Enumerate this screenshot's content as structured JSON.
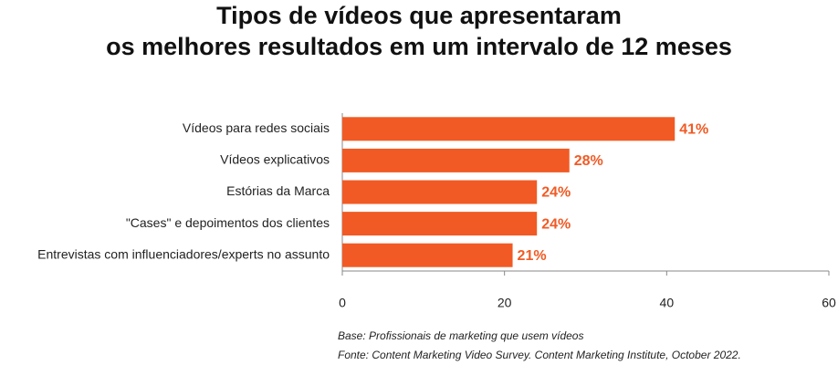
{
  "chart_data": {
    "type": "hbar",
    "title": [
      "Tipos de vídeos que apresentaram",
      "os melhores resultados em um intervalo de 12 meses"
    ],
    "categories": [
      "Vídeos para redes sociais",
      "Vídeos explicativos",
      "Estórias da Marca",
      "\"Cases\" e depoimentos dos clientes",
      "Entrevistas com influenciadores/experts no assunto"
    ],
    "values": [
      41,
      28,
      24,
      24,
      21
    ],
    "value_labels": [
      "41%",
      "28%",
      "24%",
      "24%",
      "21%"
    ],
    "color": "#f15a24",
    "xlim": [
      0,
      60
    ],
    "xticks": [
      0,
      20,
      40,
      60
    ],
    "notes": [
      "Base: Profissionais de marketing que usem vídeos",
      "Fonte: Content Marketing Video Survey. Content Marketing Institute, October 2022."
    ]
  }
}
